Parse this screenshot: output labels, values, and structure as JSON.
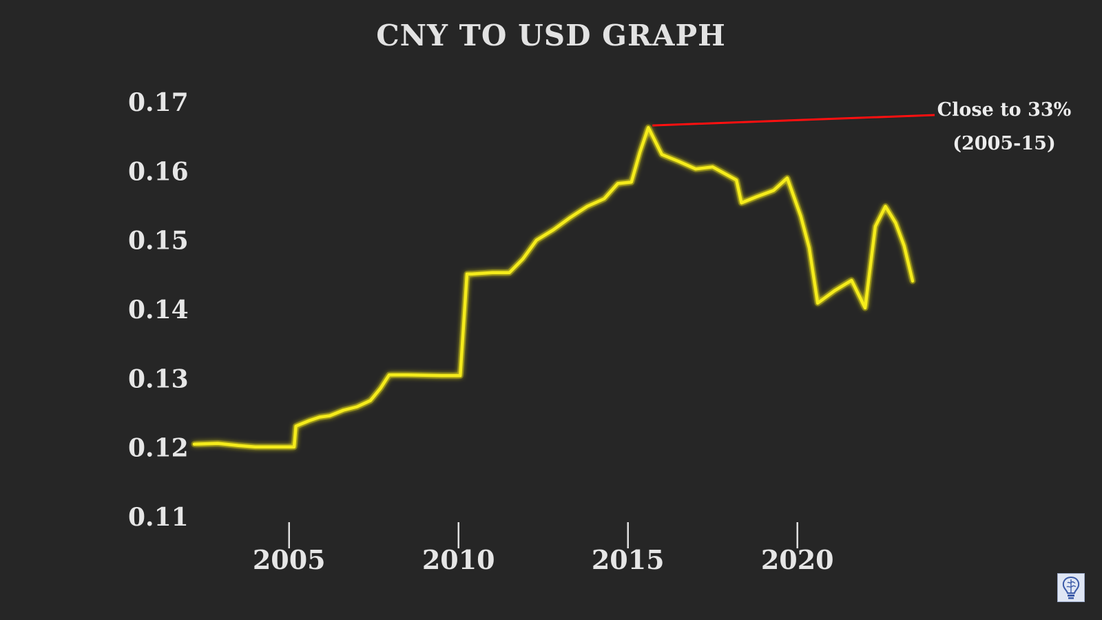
{
  "colors": {
    "background": "#262626",
    "line": "#f5ec1c",
    "line_glow": "#e8dd00",
    "annotation_line": "#ff1010",
    "grid": "#e0e0e0",
    "text": "#e6e6e6"
  },
  "watermark": {
    "icon": "brain-lightbulb-icon"
  },
  "chart_data": {
    "type": "line",
    "title": "CNY TO USD GRAPH",
    "xlabel": "",
    "ylabel": "",
    "xlim": [
      2002.2,
      2023.4
    ],
    "ylim": [
      0.11,
      0.17
    ],
    "x_ticks": [
      2005,
      2010,
      2015,
      2020
    ],
    "x_tick_labels": [
      "2005",
      "2010",
      "2015",
      "2020"
    ],
    "y_ticks": [
      0.11,
      0.12,
      0.13,
      0.14,
      0.15,
      0.16,
      0.17
    ],
    "y_tick_labels": [
      "0.11",
      "0.12",
      "0.13",
      "0.14",
      "0.15",
      "0.16",
      "0.17"
    ],
    "grid": "horizontal dashed",
    "series": [
      {
        "x": [
          2002.2,
          2002.9,
          2003.5,
          2004.0,
          2004.5,
          2005.0,
          2005.15,
          2005.2,
          2005.6,
          2005.9,
          2006.2,
          2006.6,
          2007.0,
          2007.4,
          2007.7,
          2007.95,
          2008.5,
          2009.5,
          2010.05,
          2010.25,
          2010.4,
          2011.0,
          2011.5,
          2011.9,
          2012.3,
          2012.8,
          2013.3,
          2013.8,
          2014.3,
          2014.7,
          2015.1,
          2015.35,
          2015.6,
          2016.0,
          2016.5,
          2017.0,
          2017.5,
          2018.2,
          2018.35,
          2018.8,
          2019.3,
          2019.7,
          2020.1,
          2020.35,
          2020.6,
          2021.1,
          2021.6,
          2022.0,
          2022.3,
          2022.6,
          2022.9,
          2023.15,
          2023.4
        ],
        "y": [
          0.1205,
          0.1206,
          0.1203,
          0.1201,
          0.1201,
          0.1201,
          0.1201,
          0.1231,
          0.1239,
          0.1244,
          0.1246,
          0.1254,
          0.1259,
          0.1268,
          0.1286,
          0.1305,
          0.1305,
          0.1304,
          0.1304,
          0.1451,
          0.1451,
          0.1453,
          0.1453,
          0.1473,
          0.15,
          0.1515,
          0.1533,
          0.1549,
          0.156,
          0.1582,
          0.1584,
          0.1627,
          0.1663,
          0.1624,
          0.1614,
          0.1603,
          0.1606,
          0.1587,
          0.1554,
          0.1563,
          0.1572,
          0.159,
          0.1535,
          0.1489,
          0.1409,
          0.1427,
          0.1442,
          0.1402,
          0.152,
          0.1549,
          0.1525,
          0.1492,
          0.1441
        ]
      }
    ],
    "annotation": {
      "text_lines": [
        "Close to 33%",
        "(2005-15)"
      ],
      "from": [
        2015.6,
        0.1663
      ]
    }
  }
}
